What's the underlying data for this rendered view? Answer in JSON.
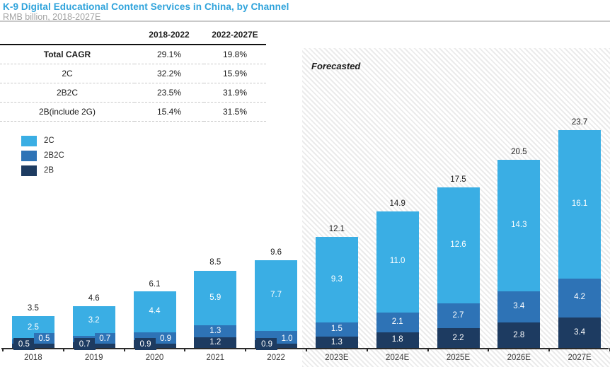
{
  "header": {
    "title": "K-9 Digital Educational Content Services in China, by Channel",
    "subtitle": "RMB billion, 2018-2027E"
  },
  "table": {
    "col_headers": [
      "2018-2022",
      "2022-2027E"
    ],
    "rows": [
      {
        "label": "Total CAGR",
        "values": [
          "29.1%",
          "19.8%"
        ]
      },
      {
        "label": "2C",
        "values": [
          "32.2%",
          "15.9%"
        ]
      },
      {
        "label": "2B2C",
        "values": [
          "23.5%",
          "31.9%"
        ]
      },
      {
        "label": "2B(include 2G)",
        "values": [
          "15.4%",
          "31.5%"
        ]
      }
    ]
  },
  "legend": [
    {
      "label": "2C",
      "color": "#3aaee4"
    },
    {
      "label": "2B2C",
      "color": "#2e73b6"
    },
    {
      "label": "2B",
      "color": "#1d3b61"
    }
  ],
  "forecast_label": "Forecasted",
  "colors": {
    "title": "#2fa3db",
    "c2c": "#3aaee4",
    "c2b2c": "#2e73b6",
    "c2b": "#1d3b61"
  },
  "chart_data": {
    "type": "bar",
    "stacked": true,
    "title": "K-9 Digital Educational Content Services in China, by Channel",
    "ylabel": "RMB billion",
    "ylim": [
      0,
      25
    ],
    "grid": false,
    "legend_position": "left-middle",
    "categories": [
      "2018",
      "2019",
      "2020",
      "2021",
      "2022",
      "2023E",
      "2024E",
      "2025E",
      "2026E",
      "2027E"
    ],
    "series": [
      {
        "name": "2B",
        "color": "#1d3b61",
        "values": [
          0.5,
          0.7,
          0.9,
          1.2,
          0.9,
          1.3,
          1.8,
          2.2,
          2.8,
          3.4
        ]
      },
      {
        "name": "2B2C",
        "color": "#2e73b6",
        "values": [
          0.5,
          0.7,
          0.9,
          1.3,
          1.0,
          1.5,
          2.1,
          2.7,
          3.4,
          4.2
        ]
      },
      {
        "name": "2C",
        "color": "#3aaee4",
        "values": [
          2.5,
          3.2,
          4.4,
          5.9,
          7.7,
          9.3,
          11.0,
          12.6,
          14.3,
          16.1
        ]
      }
    ],
    "totals": [
      3.5,
      4.6,
      6.1,
      8.5,
      9.6,
      12.1,
      14.9,
      17.5,
      20.5,
      23.7
    ],
    "forecast_start_index": 5,
    "callout_label_indices": [
      0,
      1,
      2,
      4
    ]
  }
}
